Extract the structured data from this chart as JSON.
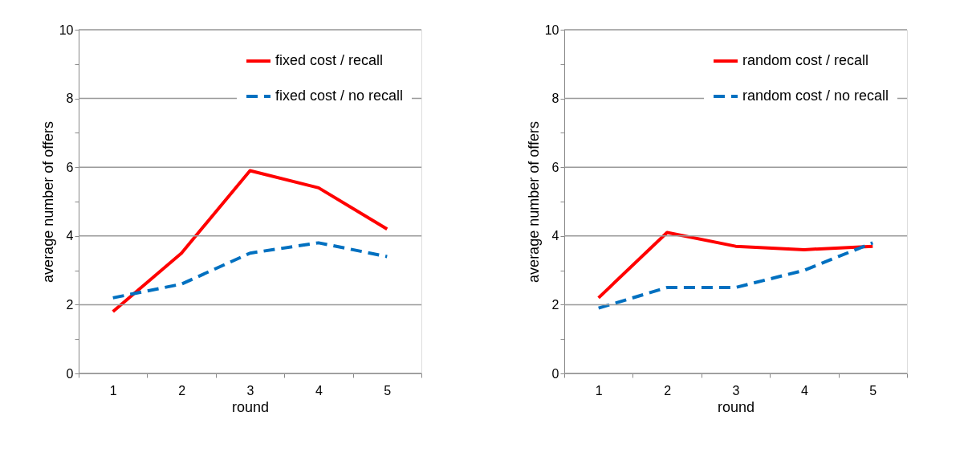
{
  "chart_data": [
    {
      "type": "line",
      "xlabel": "round",
      "ylabel": "average number of offers",
      "categories": [
        "1",
        "2",
        "3",
        "4",
        "5"
      ],
      "ylim": [
        0,
        10
      ],
      "yticks": [
        0,
        {
          "value": 1,
          "label": null
        },
        2,
        {
          "value": 3,
          "label": null
        },
        4,
        {
          "value": 5,
          "label": null
        },
        6,
        {
          "value": 7,
          "label": null
        },
        8,
        {
          "value": 9,
          "label": null
        },
        10
      ],
      "grid": "y",
      "legend": "top right",
      "series": [
        {
          "name": "fixed cost / recall",
          "color": "#ff0000",
          "line_style": "solid",
          "values": [
            1.8,
            3.5,
            5.9,
            5.4,
            4.2
          ]
        },
        {
          "name": "fixed cost / no recall",
          "color": "#0070c0",
          "line_style": "dashed",
          "values": [
            2.2,
            2.6,
            3.5,
            3.8,
            3.4
          ]
        }
      ]
    },
    {
      "type": "line",
      "xlabel": "round",
      "ylabel": "average number of offers",
      "categories": [
        "1",
        "2",
        "3",
        "4",
        "5"
      ],
      "ylim": [
        0,
        10
      ],
      "yticks": [
        0,
        {
          "value": 1,
          "label": null
        },
        2,
        {
          "value": 3,
          "label": null
        },
        4,
        {
          "value": 5,
          "label": null
        },
        6,
        {
          "value": 7,
          "label": null
        },
        8,
        {
          "value": 9,
          "label": null
        },
        10
      ],
      "grid": "y",
      "legend": "top right",
      "series": [
        {
          "name": "random cost / recall",
          "color": "#ff0000",
          "line_style": "solid",
          "values": [
            2.2,
            4.1,
            3.7,
            3.6,
            3.7
          ]
        },
        {
          "name": "random cost / no recall",
          "color": "#0070c0",
          "line_style": "dashed",
          "values": [
            1.9,
            2.5,
            2.5,
            3.0,
            3.8
          ]
        }
      ]
    }
  ]
}
